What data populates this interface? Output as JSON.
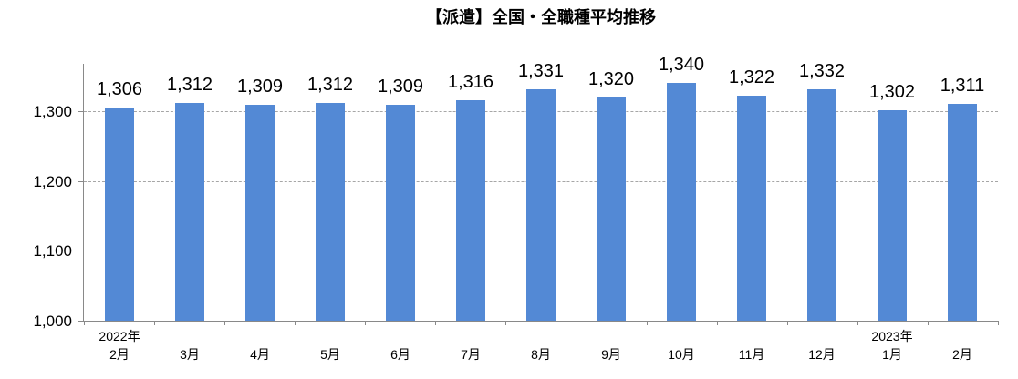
{
  "chart_data": {
    "type": "bar",
    "title": "【派遣】全国・全職種平均推移",
    "categories": [
      "2月",
      "3月",
      "4月",
      "5月",
      "6月",
      "7月",
      "8月",
      "9月",
      "10月",
      "11月",
      "12月",
      "1月",
      "2月"
    ],
    "year_labels": [
      {
        "index": 0,
        "label": "2022年"
      },
      {
        "index": 11,
        "label": "2023年"
      }
    ],
    "values": [
      1306,
      1312,
      1309,
      1312,
      1309,
      1316,
      1331,
      1320,
      1340,
      1322,
      1332,
      1302,
      1311
    ],
    "value_labels": [
      "1,306",
      "1,312",
      "1,309",
      "1,312",
      "1,309",
      "1,316",
      "1,331",
      "1,320",
      "1,340",
      "1,322",
      "1,332",
      "1,302",
      "1,311"
    ],
    "xlabel": "",
    "ylabel": "",
    "ylim": [
      1000,
      1368
    ],
    "yticks": [
      1000,
      1100,
      1200,
      1300
    ],
    "ytick_labels": [
      "1,000",
      "1,100",
      "1,200",
      "1,300"
    ],
    "grid": true,
    "legend": false,
    "colors": {
      "bar": "#5389D5",
      "gridline": "#A6A6A6",
      "axis": "#898989",
      "text": "#000000"
    }
  }
}
